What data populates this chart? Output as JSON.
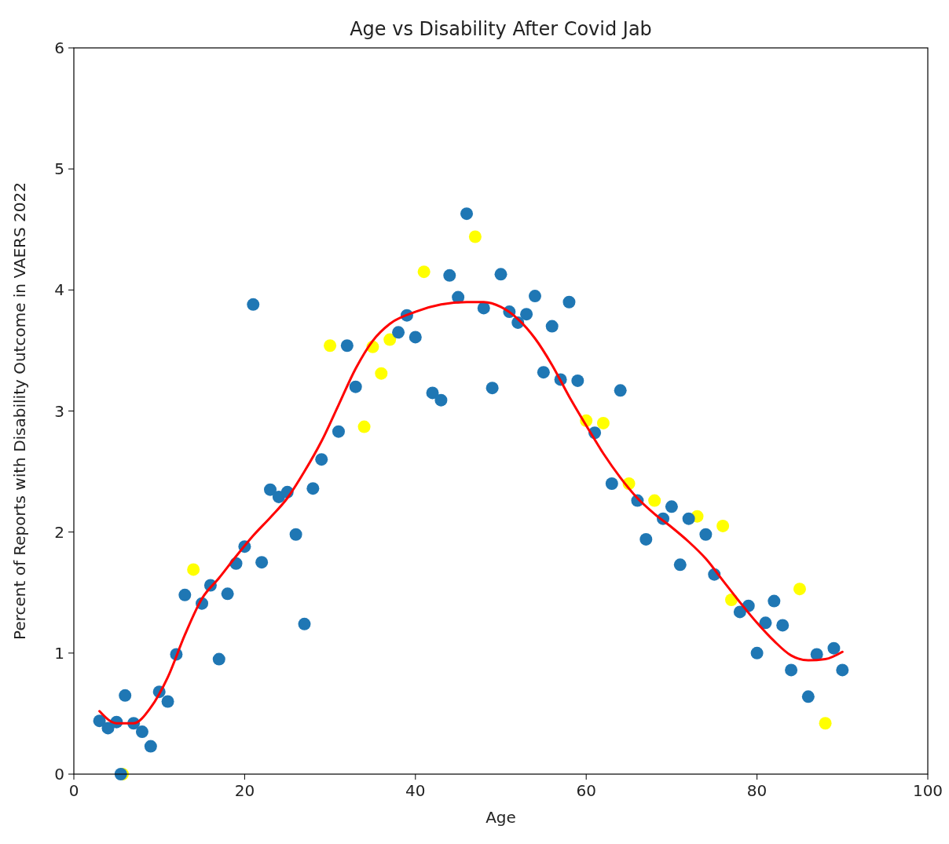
{
  "chart_data": {
    "type": "scatter",
    "title": "Age vs Disability After Covid Jab",
    "xlabel": "Age",
    "ylabel": "Percent of Reports with Disability Outcome in VAERS 2022",
    "xlim": [
      0,
      100
    ],
    "xticks": [
      0,
      20,
      40,
      60,
      80,
      100
    ],
    "ylim": [
      0,
      6
    ],
    "yticks": [
      0,
      1,
      2,
      3,
      4,
      5,
      6
    ],
    "grid": false,
    "marker": "circle",
    "series": [
      {
        "color": "#ffff00",
        "x": [
          5.7,
          14,
          30,
          34,
          35,
          36,
          37,
          41,
          47,
          60,
          62,
          65,
          68,
          73,
          76,
          77,
          85,
          88
        ],
        "values": [
          0.0,
          1.69,
          3.54,
          2.87,
          3.53,
          3.31,
          3.59,
          4.15,
          4.44,
          2.92,
          2.9,
          2.4,
          2.26,
          2.13,
          2.05,
          1.44,
          1.53,
          0.42
        ]
      },
      {
        "color": "#1f77b4",
        "x": [
          3,
          4,
          5,
          5.5,
          6,
          7,
          8,
          9,
          10,
          11,
          12,
          13,
          15,
          16,
          17,
          18,
          19,
          20,
          21,
          22,
          23,
          24,
          25,
          26,
          27,
          28,
          29,
          31,
          32,
          33,
          38,
          39,
          40,
          42,
          43,
          44,
          45,
          46,
          48,
          49,
          50,
          51,
          52,
          53,
          54,
          55,
          56,
          57,
          58,
          59,
          61,
          63,
          64,
          66,
          67,
          69,
          70,
          71,
          72,
          74,
          75,
          78,
          79,
          80,
          81,
          82,
          83,
          84,
          86,
          87,
          89,
          90
        ],
        "values": [
          0.44,
          0.38,
          0.43,
          0.0,
          0.65,
          0.42,
          0.35,
          0.23,
          0.68,
          0.6,
          0.99,
          1.48,
          1.41,
          1.56,
          0.95,
          1.49,
          1.74,
          1.88,
          3.88,
          1.75,
          2.35,
          2.29,
          2.33,
          1.98,
          1.24,
          2.36,
          2.6,
          2.83,
          3.54,
          3.2,
          3.65,
          3.79,
          3.61,
          3.15,
          3.09,
          4.12,
          3.94,
          4.63,
          3.85,
          3.19,
          4.13,
          3.82,
          3.73,
          3.8,
          3.95,
          3.32,
          3.7,
          3.26,
          3.9,
          3.25,
          2.82,
          2.4,
          3.17,
          2.26,
          1.94,
          2.11,
          2.21,
          1.73,
          2.11,
          1.98,
          1.65,
          1.34,
          1.39,
          1.0,
          1.25,
          1.43,
          1.23,
          0.86,
          0.64,
          0.99,
          1.04,
          0.86
        ]
      },
      {
        "type": "line",
        "color": "#ff0000",
        "marker": "none",
        "line_style": "solid",
        "x": [
          3,
          5,
          7,
          9,
          11,
          13,
          15,
          17,
          19,
          21,
          23,
          25,
          27,
          29,
          31,
          33,
          35,
          37,
          40,
          43,
          46,
          48,
          50,
          52,
          54,
          56,
          58,
          60,
          62,
          64,
          66,
          68,
          70,
          72,
          74,
          76,
          78,
          80,
          82,
          84,
          86,
          88,
          90
        ],
        "values": [
          0.52,
          0.42,
          0.42,
          0.55,
          0.8,
          1.15,
          1.45,
          1.62,
          1.8,
          1.97,
          2.12,
          2.28,
          2.5,
          2.75,
          3.05,
          3.35,
          3.58,
          3.72,
          3.82,
          3.88,
          3.9,
          3.9,
          3.86,
          3.76,
          3.6,
          3.38,
          3.12,
          2.88,
          2.65,
          2.45,
          2.28,
          2.15,
          2.04,
          1.92,
          1.78,
          1.6,
          1.42,
          1.25,
          1.1,
          0.98,
          0.94,
          0.95,
          1.01
        ]
      }
    ]
  }
}
